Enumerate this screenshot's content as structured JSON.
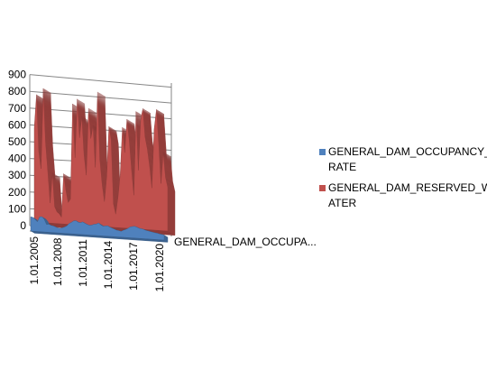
{
  "chart_data": {
    "type": "area",
    "subtype": "3d-area",
    "title": "",
    "xlabel": "",
    "ylabel": "",
    "depth_label": "GENERAL_DAM_OCCUPA...",
    "ylim": [
      0,
      900
    ],
    "yticks": [
      "0",
      "100",
      "200",
      "300",
      "400",
      "500",
      "600",
      "700",
      "800",
      "900"
    ],
    "xticks": [
      "1.01.2005",
      "1.01.2008",
      "1.01.2011",
      "1.01.2014",
      "1.01.2017",
      "1.01.2020"
    ],
    "grid": true,
    "legend_position": "right",
    "series": [
      {
        "name": "GENERAL_DAM_OCCUPANCY_RATE",
        "legend_lines": [
          "GENERAL_DAM_OCCUPANCY_",
          "RATE"
        ],
        "color": "#4f81bd",
        "values": [
          85,
          82,
          70,
          58,
          88,
          90,
          75,
          45,
          48,
          42,
          40,
          35,
          30,
          28,
          32,
          38,
          45,
          60,
          68,
          78,
          80,
          72,
          70,
          75,
          68,
          62,
          58,
          60,
          66,
          68,
          75,
          65,
          58,
          60,
          62,
          55,
          50,
          45,
          40,
          38,
          35,
          42,
          48,
          55,
          65,
          68,
          70,
          66,
          60,
          58,
          55,
          50,
          48,
          45,
          42,
          40,
          38,
          35,
          33,
          30
        ]
      },
      {
        "name": "GENERAL_DAM_RESERVED_WATER",
        "legend_lines": [
          "GENERAL_DAM_RESERVED_W",
          "ATER"
        ],
        "color": "#c0504d",
        "values": [
          560,
          760,
          420,
          320,
          800,
          480,
          300,
          120,
          300,
          100,
          70,
          60,
          40,
          300,
          200,
          130,
          150,
          720,
          400,
          750,
          520,
          650,
          420,
          300,
          700,
          520,
          600,
          350,
          800,
          400,
          250,
          150,
          300,
          600,
          520,
          140,
          80,
          180,
          320,
          600,
          450,
          650,
          520,
          350,
          200,
          700,
          350,
          650,
          720,
          550,
          480,
          380,
          250,
          600,
          720,
          520,
          280,
          470,
          320,
          260
        ]
      }
    ]
  }
}
